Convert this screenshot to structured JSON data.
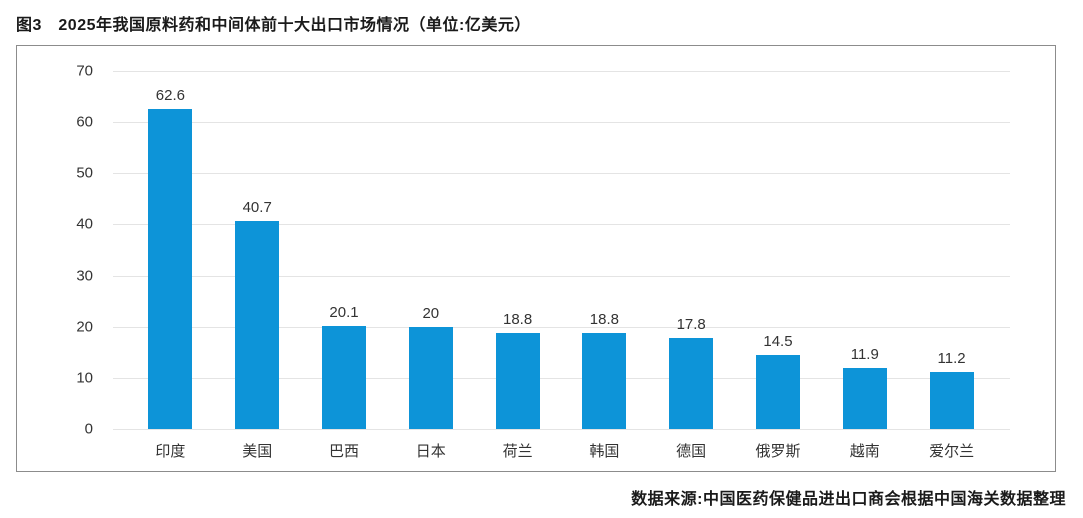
{
  "title": "图3　2025年我国原料药和中间体前十大出口市场情况（单位:亿美元）",
  "source": "数据来源:中国医药保健品进出口商会根据中国海关数据整理",
  "colors": {
    "bar": "#0d94d8",
    "gridline": "#e4e4e4",
    "box_border": "#8c8c8c",
    "text": "#1a1a1a"
  },
  "chart_data": {
    "type": "bar",
    "title": "图3　2025年我国原料药和中间体前十大出口市场情况（单位:亿美元）",
    "categories": [
      "印度",
      "美国",
      "巴西",
      "日本",
      "荷兰",
      "韩国",
      "德国",
      "俄罗斯",
      "越南",
      "爱尔兰"
    ],
    "values": [
      62.6,
      40.7,
      20.1,
      20,
      18.8,
      18.8,
      17.8,
      14.5,
      11.9,
      11.2
    ],
    "value_labels": [
      "62.6",
      "40.7",
      "20.1",
      "20",
      "18.8",
      "18.8",
      "17.8",
      "14.5",
      "11.9",
      "11.2"
    ],
    "xlabel": "",
    "ylabel": "",
    "unit": "亿美元",
    "ylim": [
      0,
      70
    ],
    "yticks": [
      0,
      10,
      20,
      30,
      40,
      50,
      60,
      70
    ],
    "grid": true,
    "legend_position": "none",
    "source_note": "数据来源:中国医药保健品进出口商会根据中国海关数据整理"
  }
}
